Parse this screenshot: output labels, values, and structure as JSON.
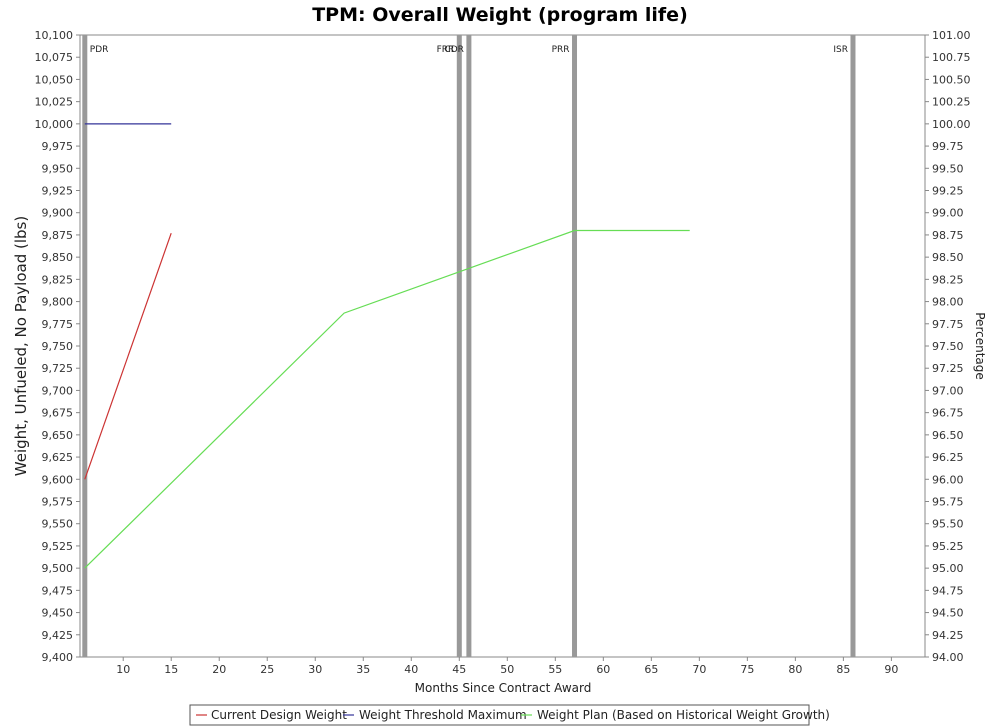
{
  "chart_data": {
    "type": "line",
    "title": "TPM: Overall Weight (program life)",
    "xlabel": "Months Since Contract Award",
    "ylabel": "Weight, Unfueled, No Payload (lbs)",
    "y2label": "Percentage",
    "xlim": [
      5.5,
      93.5
    ],
    "ylim": [
      9400,
      10100
    ],
    "y2lim": [
      94.0,
      101.0
    ],
    "x_ticks": [
      10,
      15,
      20,
      25,
      30,
      35,
      40,
      45,
      50,
      55,
      60,
      65,
      70,
      75,
      80,
      85,
      90
    ],
    "y_ticks": [
      9400,
      9425,
      9450,
      9475,
      9500,
      9525,
      9550,
      9575,
      9600,
      9625,
      9650,
      9675,
      9700,
      9725,
      9750,
      9775,
      9800,
      9825,
      9850,
      9875,
      9900,
      9925,
      9950,
      9975,
      10000,
      10025,
      10050,
      10075,
      10100
    ],
    "y_tick_labels": [
      "9,400",
      "9,425",
      "9,450",
      "9,475",
      "9,500",
      "9,525",
      "9,550",
      "9,575",
      "9,600",
      "9,625",
      "9,650",
      "9,675",
      "9,700",
      "9,725",
      "9,750",
      "9,775",
      "9,800",
      "9,825",
      "9,850",
      "9,875",
      "9,900",
      "9,925",
      "9,950",
      "9,975",
      "10,000",
      "10,025",
      "10,050",
      "10,075",
      "10,100"
    ],
    "y2_ticks": [
      94.0,
      94.25,
      94.5,
      94.75,
      95.0,
      95.25,
      95.5,
      95.75,
      96.0,
      96.25,
      96.5,
      96.75,
      97.0,
      97.25,
      97.5,
      97.75,
      98.0,
      98.25,
      98.5,
      98.75,
      99.0,
      99.25,
      99.5,
      99.75,
      100.0,
      100.25,
      100.5,
      100.75,
      101.0
    ],
    "y2_tick_labels": [
      "94.00",
      "94.25",
      "94.50",
      "94.75",
      "95.00",
      "95.25",
      "95.50",
      "95.75",
      "96.00",
      "96.25",
      "96.50",
      "96.75",
      "97.00",
      "97.25",
      "97.50",
      "97.75",
      "98.00",
      "98.25",
      "98.50",
      "98.75",
      "99.00",
      "99.25",
      "99.50",
      "99.75",
      "100.00",
      "100.25",
      "100.50",
      "100.75",
      "101.00"
    ],
    "grid": false,
    "legend_position": "bottom",
    "series": [
      {
        "name": "Current Design Weight",
        "color": "#cc3333",
        "x": [
          6,
          15
        ],
        "y": [
          9600,
          9877
        ]
      },
      {
        "name": "Weight Threshold Maximum",
        "color": "#333399",
        "x": [
          6,
          15
        ],
        "y": [
          10000,
          10000
        ]
      },
      {
        "name": "Weight Plan (Based on Historical Weight Growth)",
        "color": "#66dd55",
        "x": [
          6,
          33,
          57,
          69
        ],
        "y": [
          9500,
          9787,
          9880,
          9880
        ]
      }
    ],
    "milestones": [
      {
        "label": "PDR",
        "x": 6,
        "label_side": "right"
      },
      {
        "label": "FRR",
        "x": 45,
        "label_side": "left"
      },
      {
        "label": "CDR",
        "x": 46,
        "label_side": "left"
      },
      {
        "label": "PRR",
        "x": 57,
        "label_side": "left"
      },
      {
        "label": "ISR",
        "x": 86,
        "label_side": "left"
      }
    ],
    "milestone_color": "#999999"
  }
}
